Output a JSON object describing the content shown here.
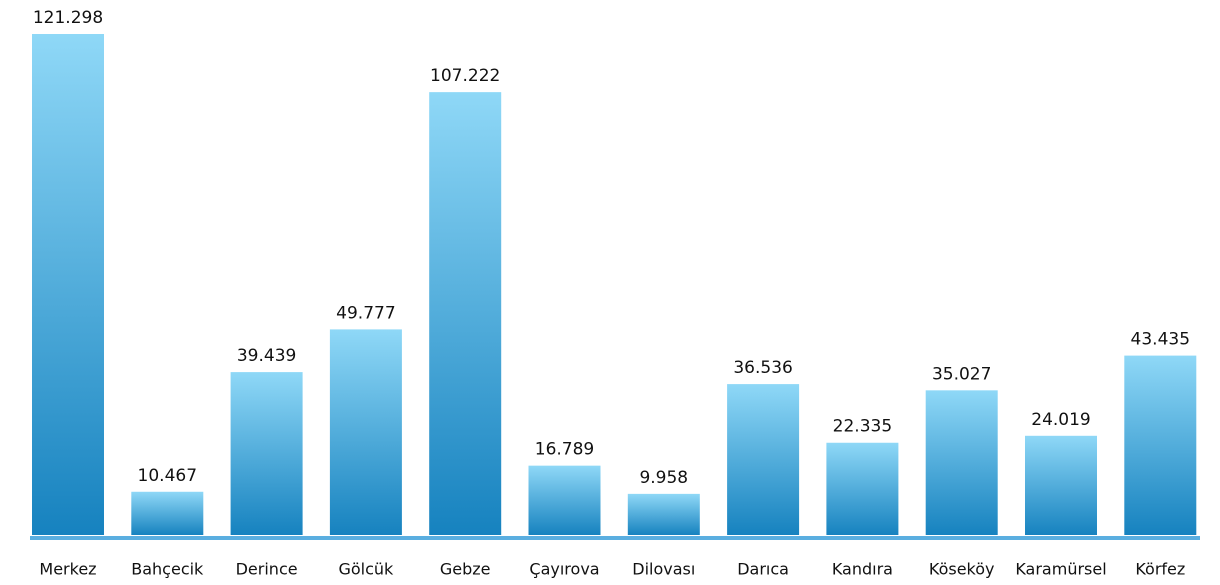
{
  "chart_data": {
    "type": "bar",
    "categories": [
      "Merkez",
      "Bahçecik",
      "Derince",
      "Gölcük",
      "Gebze",
      "Çayırova",
      "Dilovası",
      "Darıca",
      "Kandıra",
      "Köseköy",
      "Karamürsel",
      "Körfez"
    ],
    "values": [
      121298,
      10467,
      39439,
      49777,
      107222,
      16789,
      9958,
      36536,
      22335,
      35027,
      24019,
      43435
    ],
    "value_labels": [
      "121.298",
      "10.467",
      "39.439",
      "49.777",
      "107.222",
      "16.789",
      "9.958",
      "36.536",
      "22.335",
      "35.027",
      "24.019",
      "43.435"
    ],
    "color": [
      "#8fd8f7",
      "#1682bf"
    ],
    "baseline_color": "#5aaee0"
  }
}
